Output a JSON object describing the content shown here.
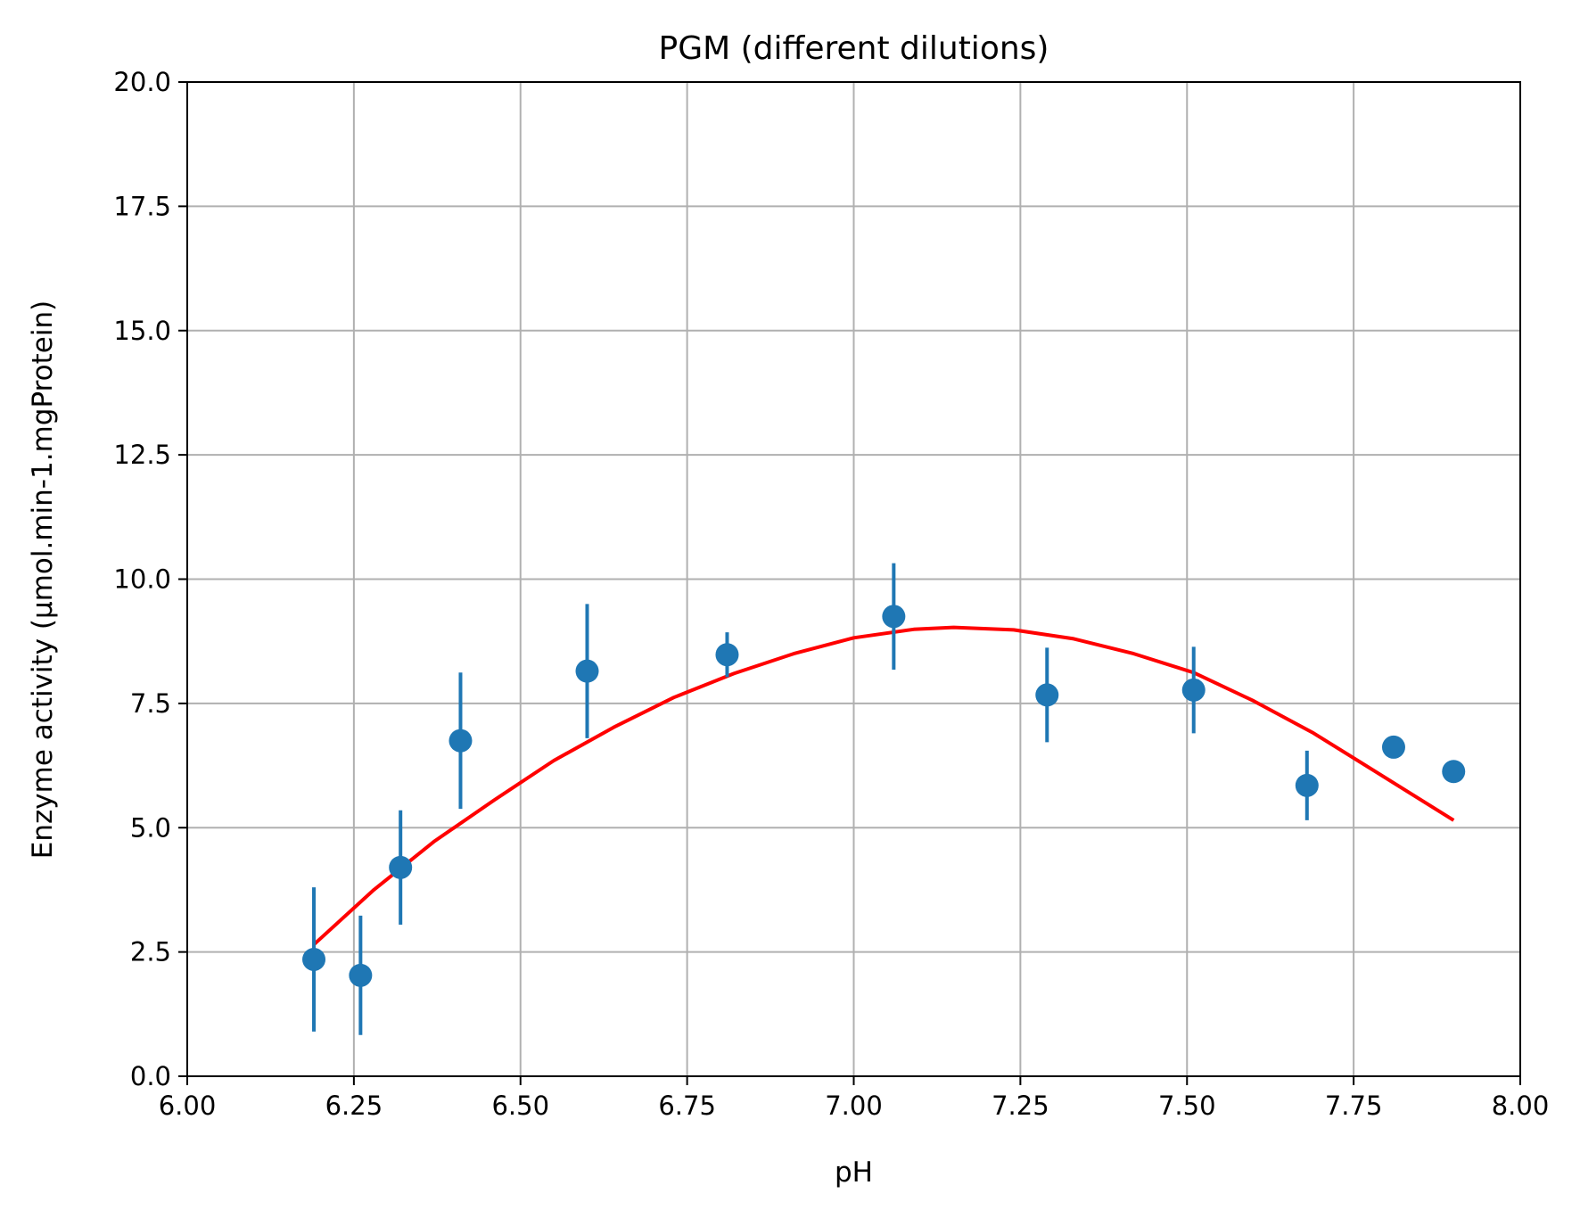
{
  "chart_data": {
    "type": "scatter",
    "title": "PGM (different dilutions)",
    "xlabel": "pH",
    "ylabel": "Enzyme activity (µmol.min-1.mgProtein)",
    "xlim": [
      6.0,
      8.0
    ],
    "ylim": [
      0.0,
      20.0
    ],
    "xticks": [
      "6.00",
      "6.25",
      "6.50",
      "6.75",
      "7.00",
      "7.25",
      "7.50",
      "7.75",
      "8.00"
    ],
    "yticks": [
      "0.0",
      "2.5",
      "5.0",
      "7.5",
      "10.0",
      "12.5",
      "15.0",
      "17.5",
      "20.0"
    ],
    "grid": true,
    "series": [
      {
        "kind": "errorbar",
        "color": "#1f77b4",
        "points": [
          {
            "x": 6.19,
            "y": 2.35,
            "err": 1.45
          },
          {
            "x": 6.26,
            "y": 2.03,
            "err": 1.2
          },
          {
            "x": 6.32,
            "y": 4.2,
            "err": 1.15
          },
          {
            "x": 6.41,
            "y": 6.75,
            "err": 1.37
          },
          {
            "x": 6.6,
            "y": 8.15,
            "err": 1.35
          },
          {
            "x": 6.81,
            "y": 8.48,
            "err": 0.45
          },
          {
            "x": 7.06,
            "y": 9.25,
            "err": 1.07
          },
          {
            "x": 7.29,
            "y": 7.67,
            "err": 0.95
          },
          {
            "x": 7.51,
            "y": 7.77,
            "err": 0.87
          },
          {
            "x": 7.68,
            "y": 5.85,
            "err": 0.7
          },
          {
            "x": 7.81,
            "y": 6.62,
            "err": 0
          },
          {
            "x": 7.9,
            "y": 6.13,
            "err": 0
          }
        ]
      },
      {
        "kind": "fit-line",
        "color": "#ff0000",
        "x": [
          6.19,
          6.28,
          6.37,
          6.46,
          6.55,
          6.64,
          6.73,
          6.82,
          6.91,
          7.0,
          7.09,
          7.15,
          7.24,
          7.33,
          7.42,
          7.51,
          7.6,
          7.69,
          7.78,
          7.9
        ],
        "y": [
          2.65,
          3.75,
          4.72,
          5.55,
          6.35,
          7.02,
          7.62,
          8.1,
          8.5,
          8.82,
          8.99,
          9.03,
          8.98,
          8.8,
          8.5,
          8.12,
          7.55,
          6.9,
          6.15,
          5.15
        ]
      }
    ]
  }
}
